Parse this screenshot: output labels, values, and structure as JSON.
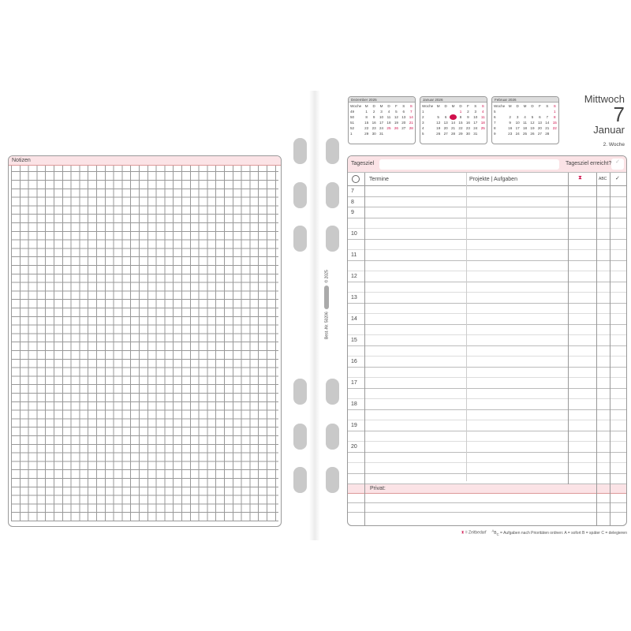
{
  "notes": {
    "title": "Notizen"
  },
  "side": {
    "order_no": "Best.-Nr. 50206",
    "copyright": "© 2025"
  },
  "calendars": [
    {
      "title": "Dezember 2025",
      "head": [
        "Woche",
        "M",
        "D",
        "M",
        "D",
        "F",
        "S",
        "S"
      ],
      "rows": [
        [
          "49",
          "1",
          "2",
          "3",
          "4",
          "5",
          "6",
          "7"
        ],
        [
          "50",
          "8",
          "9",
          "10",
          "11",
          "12",
          "13",
          "14"
        ],
        [
          "51",
          "15",
          "16",
          "17",
          "18",
          "19",
          "20",
          "21"
        ],
        [
          "52",
          "22",
          "23",
          "24",
          "25",
          "26",
          "27",
          "28"
        ],
        [
          "1",
          "29",
          "30",
          "31",
          "",
          "",
          "",
          ""
        ]
      ],
      "red": [
        "7",
        "14",
        "21",
        "25",
        "26",
        "28"
      ]
    },
    {
      "title": "Januar 2026",
      "head": [
        "Woche",
        "M",
        "D",
        "M",
        "D",
        "F",
        "S",
        "S"
      ],
      "rows": [
        [
          "1",
          "",
          "",
          "",
          "1",
          "2",
          "3",
          "4"
        ],
        [
          "2",
          "5",
          "6",
          "7",
          "8",
          "9",
          "10",
          "11"
        ],
        [
          "3",
          "12",
          "13",
          "14",
          "15",
          "16",
          "17",
          "18"
        ],
        [
          "4",
          "19",
          "20",
          "21",
          "22",
          "23",
          "24",
          "25"
        ],
        [
          "5",
          "26",
          "27",
          "28",
          "29",
          "30",
          "31",
          ""
        ]
      ],
      "red": [
        "1",
        "4",
        "11",
        "18",
        "25"
      ],
      "today": "7"
    },
    {
      "title": "Februar 2026",
      "head": [
        "Woche",
        "M",
        "D",
        "M",
        "D",
        "F",
        "S",
        "S"
      ],
      "rows": [
        [
          "5",
          "",
          "",
          "",
          "",
          "",
          "",
          "1"
        ],
        [
          "6",
          "2",
          "3",
          "4",
          "5",
          "6",
          "7",
          "8"
        ],
        [
          "7",
          "9",
          "10",
          "11",
          "12",
          "13",
          "14",
          "15"
        ],
        [
          "8",
          "16",
          "17",
          "18",
          "19",
          "20",
          "21",
          "22"
        ],
        [
          "9",
          "23",
          "24",
          "25",
          "26",
          "27",
          "28",
          ""
        ]
      ],
      "red": [
        "1",
        "8",
        "15",
        "22"
      ]
    }
  ],
  "day": {
    "weekday": "Mittwoch",
    "date": "7",
    "month": "Januar",
    "week": "2. Woche"
  },
  "planner": {
    "goal_label": "Tagesziel",
    "goal_done": "Tagesziel erreicht?",
    "col_appointments": "Termine",
    "col_projects": "Projekte | Aufgaben",
    "col_abc": "ABC",
    "hours": [
      "7",
      "8",
      "9",
      "10",
      "11",
      "12",
      "13",
      "14",
      "15",
      "16",
      "17",
      "18",
      "19",
      "20"
    ],
    "private_label": "Privat:"
  },
  "footer": {
    "time_legend": "= Zeitbedarf",
    "abc_legend": "= Aufgaben nach Prioritäten ordnen: A = sofort   B = später   C = delegieren"
  },
  "colors": {
    "accent": "#d0104c",
    "band": "#fbe3e6"
  }
}
